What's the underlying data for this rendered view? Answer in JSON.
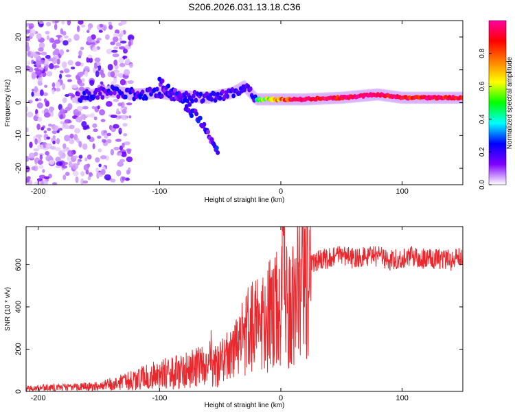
{
  "figure_title": "S206.2026.031.13.18.C36",
  "chart_data": [
    {
      "type": "heatmap",
      "title": "S206.2026.031.13.18.C36",
      "xlabel": "Height of straight line (km)",
      "ylabel": "Frequency (Hz)",
      "xlim": [
        -210,
        150
      ],
      "ylim": [
        -25,
        25
      ],
      "x_ticks": [
        -200,
        -100,
        0,
        100
      ],
      "y_ticks": [
        -20,
        -10,
        0,
        10,
        20
      ],
      "colorbar": {
        "label": "Normalized spectral amplitude",
        "range": [
          0,
          1
        ],
        "ticks": [
          "0.0",
          "0.2",
          "0.4",
          "0.6",
          "0.8"
        ],
        "tick_values": [
          0.0,
          0.2,
          0.4,
          0.6,
          0.8
        ],
        "stops": [
          "#ffffff",
          "#8000ff",
          "#0000ff",
          "#00ffff",
          "#00ff00",
          "#ffff00",
          "#ff8000",
          "#ff0000",
          "#ff00a0"
        ]
      },
      "features": [
        {
          "name": "main-band",
          "x": [
            -168,
            -140,
            -120,
            -100,
            -80,
            -60,
            -40,
            -30,
            -20,
            0,
            20,
            50,
            80,
            100,
            120,
            150
          ],
          "freq": [
            1.5,
            3.5,
            2.5,
            3,
            2,
            1.5,
            3,
            5,
            1,
            1,
            1,
            1.5,
            2.5,
            1.5,
            1.5,
            1.5
          ]
        },
        {
          "name": "descending-branch",
          "x": [
            -100,
            -85,
            -70,
            -60,
            -52
          ],
          "freq": [
            6,
            2,
            -4,
            -9,
            -14
          ]
        },
        {
          "name": "noise-region",
          "x_range": [
            -210,
            -123
          ],
          "freq_range": [
            -25,
            25
          ]
        }
      ]
    },
    {
      "type": "line",
      "title": "",
      "xlabel": "Height of straight line (km)",
      "ylabel": "SNR (10 * v/v)",
      "xlim": [
        -210,
        150
      ],
      "ylim": [
        0,
        780
      ],
      "x_ticks": [
        -200,
        -100,
        0,
        100
      ],
      "y_ticks": [
        0,
        200,
        400,
        600
      ],
      "series": [
        {
          "name": "SNR",
          "color": "#e8282d",
          "x": [
            -210,
            -190,
            -170,
            -150,
            -140,
            -130,
            -120,
            -110,
            -100,
            -90,
            -80,
            -70,
            -60,
            -50,
            -40,
            -30,
            -25,
            -20,
            -15,
            -10,
            -5,
            0,
            2,
            5,
            10,
            15,
            20,
            25,
            30,
            40,
            50,
            60,
            70,
            80,
            90,
            100,
            110,
            120,
            130,
            140,
            150
          ],
          "y": [
            15,
            18,
            20,
            25,
            35,
            45,
            55,
            70,
            80,
            90,
            100,
            110,
            120,
            130,
            170,
            260,
            300,
            300,
            330,
            350,
            380,
            400,
            700,
            420,
            450,
            520,
            560,
            600,
            620,
            630,
            640,
            630,
            635,
            640,
            620,
            630,
            640,
            625,
            630,
            620,
            640
          ]
        }
      ]
    }
  ]
}
